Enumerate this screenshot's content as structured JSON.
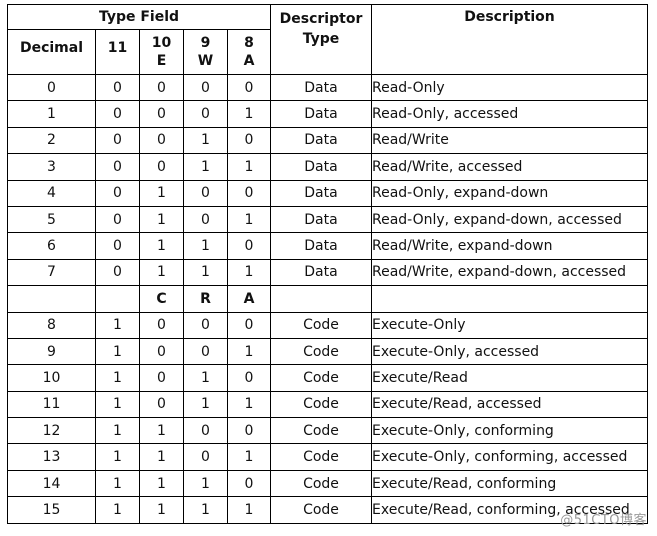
{
  "header": {
    "type_field": "Type Field",
    "decimal": "Decimal",
    "bit11": "11",
    "bit10_num": "10",
    "bit10_letter": "E",
    "bit9_num": "9",
    "bit9_letter": "W",
    "bit8_num": "8",
    "bit8_letter": "A",
    "descriptor_line1": "Descriptor",
    "descriptor_line2": "Type",
    "description": "Description"
  },
  "data_rows": [
    {
      "dec": "0",
      "b11": "0",
      "b10": "0",
      "b9": "0",
      "b8": "0",
      "type": "Data",
      "desc": "Read-Only"
    },
    {
      "dec": "1",
      "b11": "0",
      "b10": "0",
      "b9": "0",
      "b8": "1",
      "type": "Data",
      "desc": "Read-Only, accessed"
    },
    {
      "dec": "2",
      "b11": "0",
      "b10": "0",
      "b9": "1",
      "b8": "0",
      "type": "Data",
      "desc": "Read/Write"
    },
    {
      "dec": "3",
      "b11": "0",
      "b10": "0",
      "b9": "1",
      "b8": "1",
      "type": "Data",
      "desc": "Read/Write, accessed"
    },
    {
      "dec": "4",
      "b11": "0",
      "b10": "1",
      "b9": "0",
      "b8": "0",
      "type": "Data",
      "desc": "Read-Only, expand-down"
    },
    {
      "dec": "5",
      "b11": "0",
      "b10": "1",
      "b9": "0",
      "b8": "1",
      "type": "Data",
      "desc": "Read-Only, expand-down, accessed"
    },
    {
      "dec": "6",
      "b11": "0",
      "b10": "1",
      "b9": "1",
      "b8": "0",
      "type": "Data",
      "desc": "Read/Write, expand-down"
    },
    {
      "dec": "7",
      "b11": "0",
      "b10": "1",
      "b9": "1",
      "b8": "1",
      "type": "Data",
      "desc": "Read/Write, expand-down, accessed"
    }
  ],
  "code_subheader": {
    "b10": "C",
    "b9": "R",
    "b8": "A"
  },
  "code_rows": [
    {
      "dec": "8",
      "b11": "1",
      "b10": "0",
      "b9": "0",
      "b8": "0",
      "type": "Code",
      "desc": "Execute-Only"
    },
    {
      "dec": "9",
      "b11": "1",
      "b10": "0",
      "b9": "0",
      "b8": "1",
      "type": "Code",
      "desc": "Execute-Only, accessed"
    },
    {
      "dec": "10",
      "b11": "1",
      "b10": "0",
      "b9": "1",
      "b8": "0",
      "type": "Code",
      "desc": "Execute/Read"
    },
    {
      "dec": "11",
      "b11": "1",
      "b10": "0",
      "b9": "1",
      "b8": "1",
      "type": "Code",
      "desc": "Execute/Read, accessed"
    },
    {
      "dec": "12",
      "b11": "1",
      "b10": "1",
      "b9": "0",
      "b8": "0",
      "type": "Code",
      "desc": "Execute-Only, conforming"
    },
    {
      "dec": "13",
      "b11": "1",
      "b10": "1",
      "b9": "0",
      "b8": "1",
      "type": "Code",
      "desc": "Execute-Only, conforming, accessed"
    },
    {
      "dec": "14",
      "b11": "1",
      "b10": "1",
      "b9": "1",
      "b8": "0",
      "type": "Code",
      "desc": "Execute/Read, conforming"
    },
    {
      "dec": "15",
      "b11": "1",
      "b10": "1",
      "b9": "1",
      "b8": "1",
      "type": "Code",
      "desc": "Execute/Read, conforming, accessed"
    }
  ],
  "watermark": "@51CTO博客"
}
